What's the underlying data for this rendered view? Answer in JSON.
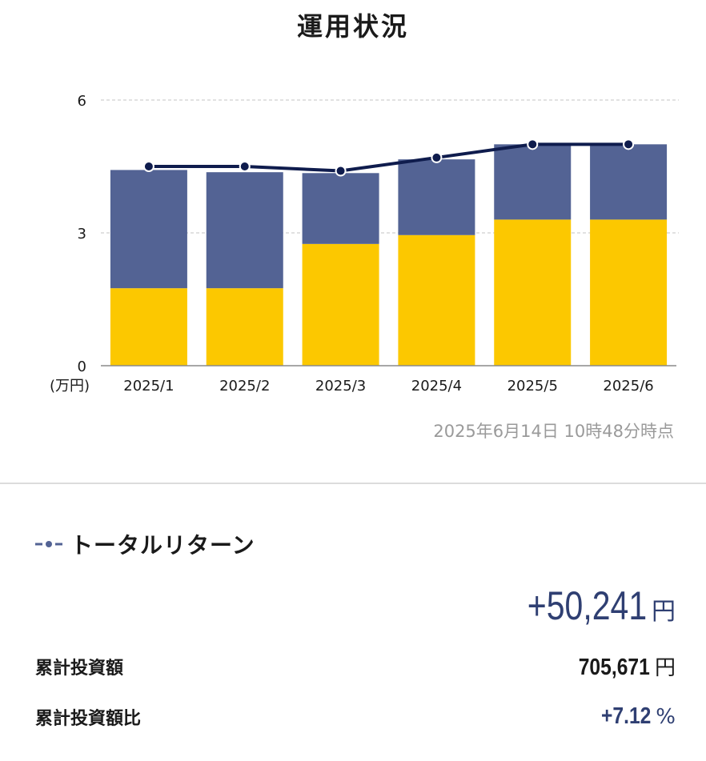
{
  "title": "運用状況",
  "as_of": "2025年6月14日 10時48分時点",
  "colors": {
    "bar_bottom": "#fcc800",
    "bar_top": "#536394",
    "line": "#0f1c4d",
    "grid": "#cfcfcf",
    "accent": "#2f3f72"
  },
  "chart_data": {
    "type": "bar",
    "stacked": true,
    "categories": [
      "2025/1",
      "2025/2",
      "2025/3",
      "2025/4",
      "2025/5",
      "2025/6"
    ],
    "series": [
      {
        "values": [
          1.75,
          1.75,
          2.75,
          2.95,
          3.3,
          3.3
        ]
      },
      {
        "values": [
          2.67,
          2.62,
          1.6,
          1.71,
          1.7,
          1.7
        ]
      }
    ],
    "line_series": {
      "values": [
        4.5,
        4.5,
        4.4,
        4.7,
        5.0,
        5.0
      ]
    },
    "y_ticks": [
      "0",
      "3",
      "6"
    ],
    "ylim": [
      0,
      6
    ],
    "unit_label": "(万円)",
    "grid": true
  },
  "total_return": {
    "legend_icon": "dashed-dot-line-icon",
    "label": "トータルリターン",
    "amount": "+50,241",
    "unit": "円"
  },
  "cumulative_investment": {
    "label": "累計投資額",
    "amount": "705,671",
    "unit": "円"
  },
  "investment_ratio": {
    "label": "累計投資額比",
    "amount": "+7.12",
    "unit": "%"
  }
}
